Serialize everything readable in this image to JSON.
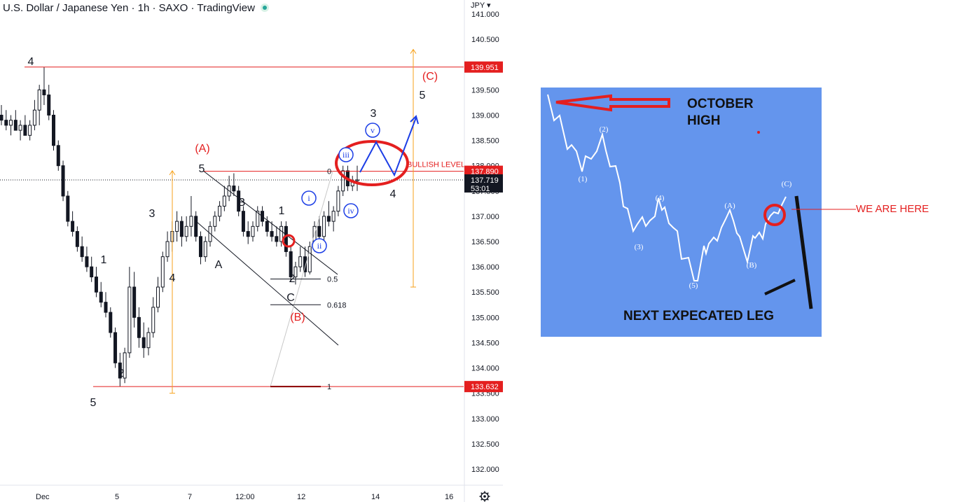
{
  "header": {
    "title": "U.S. Dollar / Japanese Yen · 1h · SAXO · TradingView",
    "currency": "JPY"
  },
  "colors": {
    "red": "#e41f1f",
    "orange": "#f7a21b",
    "blue": "#1c3ee6",
    "inset_bg": "#6495ed",
    "candle": "#131722"
  },
  "chart_data": [
    {
      "type": "candlestick",
      "title": "U.S. Dollar / Japanese Yen · 1h · SAXO · TradingView",
      "x_ticks": [
        "Dec",
        "5",
        "7",
        "12:00",
        "12",
        "14",
        "16"
      ],
      "y_ticks": [
        141.0,
        140.5,
        140.0,
        139.5,
        139.0,
        138.5,
        138.0,
        137.5,
        137.0,
        136.5,
        136.0,
        135.5,
        135.0,
        134.5,
        134.0,
        133.5,
        133.0,
        132.5,
        132.0
      ],
      "y_tick_labels": [
        "141.000",
        "140.500",
        "140.000",
        "139.500",
        "139.000",
        "138.500",
        "138.000",
        "137.500",
        "137.000",
        "136.500",
        "136.000",
        "135.500",
        "135.000",
        "134.500",
        "134.000",
        "133.500",
        "133.000",
        "132.500",
        "132.000"
      ],
      "ylim": [
        131.7,
        141.1
      ],
      "price_tags": [
        {
          "label": "139.951",
          "value": 139.951,
          "style": "red"
        },
        {
          "label": "137.890",
          "value": 137.89,
          "style": "red"
        },
        {
          "label": "137.719",
          "sublabel": "53:01",
          "value": 137.719,
          "style": "dark"
        },
        {
          "label": "133.632",
          "value": 133.632,
          "style": "red"
        }
      ],
      "levels": [
        {
          "name": "october-high-line",
          "value": 139.951
        },
        {
          "name": "bullish-level-line",
          "value": 137.89
        },
        {
          "name": "low-line",
          "value": 133.632
        }
      ],
      "fib_labels": [
        {
          "label": "0",
          "value": 137.89
        },
        {
          "label": "0.5",
          "value": 135.76
        },
        {
          "label": "0.618",
          "value": 135.25
        },
        {
          "label": "1",
          "value": 133.632
        }
      ],
      "annotations": {
        "bullish_level": "BULLISH LEVEL",
        "red_labels": [
          "(A)",
          "(B)",
          "(C)"
        ],
        "black_labels": [
          "4",
          "1",
          "2",
          "3",
          "4",
          "5",
          "5",
          "A",
          "B",
          "C",
          "1",
          "2",
          "3",
          "4",
          "5"
        ],
        "blue_labels": [
          "i",
          "ii",
          "iii",
          "iv",
          "v"
        ]
      },
      "wave_points": [
        {
          "label": "4",
          "value": 139.95
        },
        {
          "label": "5",
          "value": 133.63
        },
        {
          "label": "1",
          "value": 137.0
        },
        {
          "label": "2",
          "value": 134.25
        },
        {
          "label": "3",
          "value": 137.1
        },
        {
          "label": "4",
          "value": 136.05
        },
        {
          "label": "5",
          "value": 137.85
        },
        {
          "label": "A",
          "value": 136.45
        },
        {
          "label": "B",
          "value": 137.2
        },
        {
          "label": "C",
          "value": 135.65
        },
        {
          "label": "1",
          "value": 137.3
        },
        {
          "label": "2",
          "value": 135.9
        },
        {
          "label": "3",
          "value": 138.0
        },
        {
          "label": "4",
          "value": 137.5
        },
        {
          "label": "5",
          "value": 139.2
        }
      ],
      "candles": [
        [
          139.0,
          139.2,
          138.8,
          138.9
        ],
        [
          138.9,
          139.1,
          138.7,
          138.8
        ],
        [
          138.8,
          139.0,
          138.6,
          138.9
        ],
        [
          138.9,
          139.1,
          138.7,
          138.7
        ],
        [
          138.7,
          138.9,
          138.5,
          138.8
        ],
        [
          138.8,
          139.0,
          138.6,
          138.6
        ],
        [
          138.6,
          138.9,
          138.5,
          138.8
        ],
        [
          138.8,
          139.3,
          138.7,
          139.1
        ],
        [
          139.1,
          139.6,
          138.8,
          139.5
        ],
        [
          139.5,
          139.95,
          139.2,
          139.4
        ],
        [
          139.4,
          139.6,
          138.9,
          139.0
        ],
        [
          139.0,
          139.1,
          138.3,
          138.4
        ],
        [
          138.4,
          138.5,
          137.9,
          138.0
        ],
        [
          138.0,
          138.1,
          137.3,
          137.4
        ],
        [
          137.4,
          137.5,
          136.8,
          136.9
        ],
        [
          136.9,
          137.1,
          136.6,
          136.7
        ],
        [
          136.7,
          136.8,
          136.3,
          136.4
        ],
        [
          136.4,
          136.6,
          136.1,
          136.2
        ],
        [
          136.2,
          136.4,
          135.9,
          136.0
        ],
        [
          136.0,
          136.2,
          135.7,
          135.8
        ],
        [
          135.8,
          136.0,
          135.4,
          135.5
        ],
        [
          135.5,
          135.7,
          135.2,
          135.3
        ],
        [
          135.3,
          135.5,
          135.0,
          135.1
        ],
        [
          135.1,
          135.2,
          134.6,
          134.7
        ],
        [
          134.7,
          134.8,
          134.0,
          134.1
        ],
        [
          134.1,
          134.3,
          133.63,
          133.8
        ],
        [
          133.8,
          134.4,
          133.7,
          134.3
        ],
        [
          134.3,
          136.0,
          134.2,
          135.6
        ],
        [
          135.6,
          135.9,
          134.8,
          135.0
        ],
        [
          135.0,
          135.2,
          134.4,
          134.6
        ],
        [
          134.6,
          134.9,
          134.2,
          134.4
        ],
        [
          134.4,
          134.8,
          134.25,
          134.7
        ],
        [
          134.7,
          135.4,
          134.6,
          135.2
        ],
        [
          135.2,
          135.8,
          135.1,
          135.6
        ],
        [
          135.6,
          136.3,
          135.5,
          136.2
        ],
        [
          136.2,
          136.7,
          136.1,
          136.5
        ],
        [
          136.5,
          136.9,
          136.3,
          136.7
        ],
        [
          136.7,
          137.1,
          136.5,
          136.9
        ],
        [
          136.9,
          137.0,
          136.4,
          136.6
        ],
        [
          136.6,
          137.0,
          136.5,
          136.8
        ],
        [
          136.8,
          137.4,
          136.6,
          137.0
        ],
        [
          137.0,
          137.1,
          136.5,
          136.6
        ],
        [
          136.6,
          136.7,
          136.05,
          136.2
        ],
        [
          136.2,
          136.6,
          136.1,
          136.5
        ],
        [
          136.5,
          136.9,
          136.4,
          136.8
        ],
        [
          136.8,
          137.1,
          136.7,
          137.0
        ],
        [
          137.0,
          137.3,
          136.9,
          137.2
        ],
        [
          137.2,
          137.6,
          137.1,
          137.4
        ],
        [
          137.4,
          137.8,
          137.3,
          137.6
        ],
        [
          137.6,
          137.85,
          137.4,
          137.5
        ],
        [
          137.5,
          137.6,
          137.0,
          137.1
        ],
        [
          137.1,
          137.2,
          136.6,
          136.7
        ],
        [
          136.7,
          136.9,
          136.45,
          136.6
        ],
        [
          136.6,
          136.9,
          136.5,
          136.8
        ],
        [
          136.8,
          137.2,
          136.7,
          137.1
        ],
        [
          137.1,
          137.2,
          136.8,
          136.9
        ],
        [
          136.9,
          137.0,
          136.6,
          136.7
        ],
        [
          136.7,
          136.9,
          136.5,
          136.6
        ],
        [
          136.6,
          136.8,
          136.4,
          136.5
        ],
        [
          136.5,
          136.9,
          136.4,
          136.8
        ],
        [
          136.8,
          136.9,
          136.2,
          136.3
        ],
        [
          136.3,
          136.4,
          135.7,
          135.8
        ],
        [
          135.8,
          136.1,
          135.65,
          136.0
        ],
        [
          136.0,
          136.4,
          135.9,
          136.2
        ],
        [
          136.2,
          136.4,
          135.8,
          135.9
        ],
        [
          135.9,
          136.5,
          135.85,
          136.4
        ],
        [
          136.4,
          136.9,
          136.3,
          136.8
        ],
        [
          136.8,
          137.0,
          136.5,
          136.6
        ],
        [
          136.6,
          137.1,
          136.5,
          137.0
        ],
        [
          137.0,
          137.3,
          136.8,
          136.9
        ],
        [
          136.9,
          137.2,
          136.7,
          137.1
        ],
        [
          137.1,
          137.6,
          137.0,
          137.5
        ],
        [
          137.5,
          138.0,
          137.4,
          137.9
        ],
        [
          137.9,
          138.0,
          137.5,
          137.6
        ],
        [
          137.6,
          137.8,
          137.5,
          137.7
        ],
        [
          137.7,
          138.0,
          137.5,
          137.72
        ]
      ]
    }
  ],
  "inset": {
    "title_line1": "OCTOBER",
    "title_line2": "HIGH",
    "we_are_here": "WE ARE HERE",
    "next_leg": "NEXT EXPECATED LEG",
    "wave_labels": [
      "(1)",
      "(2)",
      "(3)",
      "(4)",
      "(5)",
      "(A)",
      "(B)",
      "(C)"
    ]
  }
}
